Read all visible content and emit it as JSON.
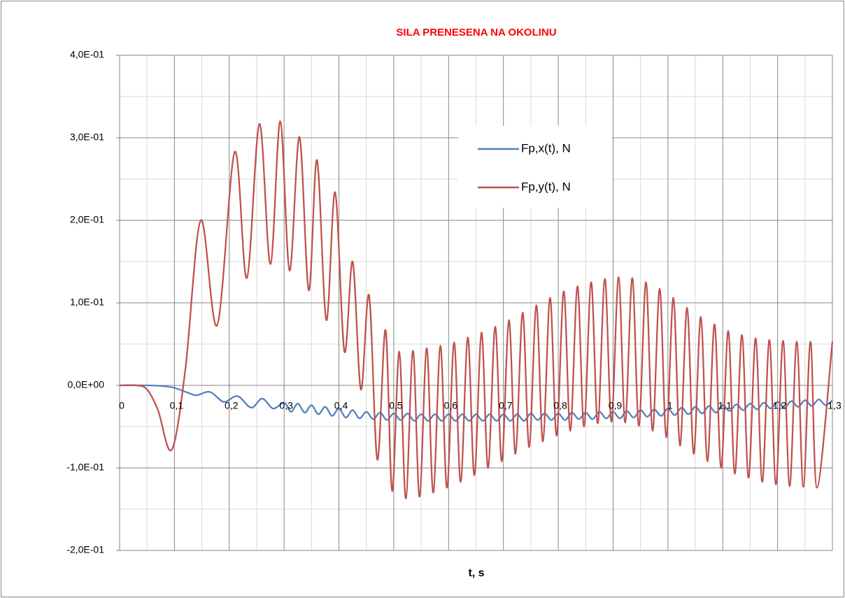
{
  "chart_data": {
    "type": "line",
    "title": "SILA PRENESENA NA OKOLINU",
    "xlabel": "t, s",
    "xlim": [
      0,
      1.3
    ],
    "ylim": [
      -0.2,
      0.4
    ],
    "xticks": [
      0,
      {
        "value": 0.1,
        "label": "0,1"
      },
      {
        "value": 0.2,
        "label": "0,2"
      },
      {
        "value": 0.3,
        "label": "0,3"
      },
      {
        "value": 0.4,
        "label": "0,4"
      },
      {
        "value": 0.5,
        "label": "0,5"
      },
      {
        "value": 0.6,
        "label": "0,6"
      },
      {
        "value": 0.7,
        "label": "0,7"
      },
      {
        "value": 0.8,
        "label": "0,8"
      },
      {
        "value": 0.9,
        "label": "0,9"
      },
      {
        "value": 1,
        "label": "1"
      },
      {
        "value": 1.1,
        "label": "1,1"
      },
      {
        "value": 1.2,
        "label": "1,2"
      },
      {
        "value": 1.3,
        "label": "1,3"
      }
    ],
    "yticks": [
      {
        "value": -0.2,
        "label": "-2,0E-01"
      },
      {
        "value": -0.1,
        "label": "-1,0E-01"
      },
      {
        "value": 0,
        "label": "0,0E+00"
      },
      {
        "value": 0.1,
        "label": "1,0E-01"
      },
      {
        "value": 0.2,
        "label": "2,0E-01"
      },
      {
        "value": 0.3,
        "label": "3,0E-01"
      },
      {
        "value": 0.4,
        "label": "4,0E-01"
      }
    ],
    "grid": true,
    "minor_grid": true,
    "legend": "upper right",
    "series": [
      {
        "name": "Fp,x(t), N",
        "color": "#4f81bd",
        "x": [
          0,
          0.05,
          0.08,
          0.1,
          0.125,
          0.14,
          0.165,
          0.19,
          0.215,
          0.24,
          0.26,
          0.28,
          0.3,
          0.3125,
          0.325,
          0.3375,
          0.35,
          0.3625,
          0.375,
          0.3875,
          0.4,
          0.4125,
          0.425,
          0.4375,
          0.45,
          0.4625,
          0.475,
          0.4875,
          0.5,
          0.5125,
          0.525,
          0.5375,
          0.55,
          0.5625,
          0.575,
          0.5875,
          0.6,
          0.6125,
          0.625,
          0.6375,
          0.65,
          0.6625,
          0.675,
          0.6875,
          0.7,
          0.7125,
          0.725,
          0.7375,
          0.75,
          0.7625,
          0.775,
          0.7875,
          0.8,
          0.8125,
          0.825,
          0.8375,
          0.85,
          0.8625,
          0.875,
          0.8875,
          0.9,
          0.9125,
          0.925,
          0.9375,
          0.95,
          0.9625,
          0.975,
          0.9875,
          1.0,
          1.0125,
          1.025,
          1.0375,
          1.05,
          1.0625,
          1.075,
          1.0875,
          1.1,
          1.1125,
          1.125,
          1.1375,
          1.15,
          1.1625,
          1.175,
          1.1875,
          1.2,
          1.2125,
          1.225,
          1.2375,
          1.25,
          1.2625,
          1.275,
          1.2875,
          1.3
        ],
        "values": [
          0,
          0,
          -0.001,
          -0.003,
          -0.009,
          -0.012,
          -0.008,
          -0.02,
          -0.013,
          -0.027,
          -0.016,
          -0.028,
          -0.021,
          -0.032,
          -0.022,
          -0.033,
          -0.024,
          -0.035,
          -0.026,
          -0.037,
          -0.028,
          -0.039,
          -0.03,
          -0.04,
          -0.032,
          -0.041,
          -0.033,
          -0.042,
          -0.034,
          -0.042,
          -0.034,
          -0.043,
          -0.035,
          -0.043,
          -0.035,
          -0.043,
          -0.035,
          -0.043,
          -0.035,
          -0.043,
          -0.035,
          -0.043,
          -0.035,
          -0.043,
          -0.035,
          -0.043,
          -0.035,
          -0.043,
          -0.034,
          -0.042,
          -0.034,
          -0.042,
          -0.034,
          -0.042,
          -0.033,
          -0.041,
          -0.033,
          -0.041,
          -0.032,
          -0.04,
          -0.032,
          -0.04,
          -0.031,
          -0.039,
          -0.03,
          -0.038,
          -0.029,
          -0.037,
          -0.028,
          -0.036,
          -0.027,
          -0.035,
          -0.026,
          -0.034,
          -0.025,
          -0.033,
          -0.024,
          -0.031,
          -0.023,
          -0.03,
          -0.022,
          -0.029,
          -0.021,
          -0.028,
          -0.02,
          -0.027,
          -0.019,
          -0.026,
          -0.018,
          -0.025,
          -0.017,
          -0.024,
          -0.018
        ]
      },
      {
        "name": "Fp,y(t), N",
        "color": "#c0504d",
        "x": [
          0,
          0.03,
          0.05,
          0.07,
          0.095,
          0.12,
          0.148,
          0.178,
          0.21,
          0.232,
          0.255,
          0.275,
          0.293,
          0.31,
          0.328,
          0.345,
          0.36,
          0.377,
          0.393,
          0.41,
          0.425,
          0.44,
          0.455,
          0.47,
          0.485,
          0.497,
          0.51,
          0.522,
          0.535,
          0.547,
          0.56,
          0.572,
          0.585,
          0.597,
          0.61,
          0.622,
          0.635,
          0.647,
          0.66,
          0.672,
          0.685,
          0.697,
          0.71,
          0.722,
          0.735,
          0.747,
          0.76,
          0.772,
          0.785,
          0.797,
          0.81,
          0.822,
          0.835,
          0.847,
          0.86,
          0.872,
          0.885,
          0.897,
          0.91,
          0.922,
          0.935,
          0.947,
          0.96,
          0.972,
          0.985,
          0.997,
          1.01,
          1.022,
          1.035,
          1.047,
          1.06,
          1.072,
          1.085,
          1.097,
          1.11,
          1.122,
          1.135,
          1.147,
          1.16,
          1.172,
          1.185,
          1.197,
          1.21,
          1.222,
          1.235,
          1.247,
          1.26,
          1.272,
          1.3
        ],
        "values": [
          0,
          0,
          -0.005,
          -0.03,
          -0.078,
          0.02,
          0.2,
          0.073,
          0.283,
          0.13,
          0.317,
          0.147,
          0.32,
          0.139,
          0.301,
          0.115,
          0.273,
          0.079,
          0.234,
          0.041,
          0.15,
          -0.005,
          0.109,
          -0.09,
          0.067,
          -0.128,
          0.041,
          -0.137,
          0.042,
          -0.135,
          0.045,
          -0.13,
          0.048,
          -0.124,
          0.052,
          -0.117,
          0.058,
          -0.109,
          0.064,
          -0.1,
          0.071,
          -0.092,
          0.079,
          -0.083,
          0.088,
          -0.075,
          0.097,
          -0.068,
          0.106,
          -0.061,
          0.114,
          -0.055,
          0.12,
          -0.05,
          0.125,
          -0.046,
          0.129,
          -0.044,
          0.131,
          -0.045,
          0.13,
          -0.049,
          0.125,
          -0.055,
          0.117,
          -0.063,
          0.106,
          -0.073,
          0.094,
          -0.083,
          0.083,
          -0.092,
          0.074,
          -0.1,
          0.066,
          -0.107,
          0.061,
          -0.112,
          0.057,
          -0.117,
          0.055,
          -0.12,
          0.054,
          -0.122,
          0.053,
          -0.123,
          0.053,
          -0.124,
          0.053
        ]
      }
    ]
  }
}
